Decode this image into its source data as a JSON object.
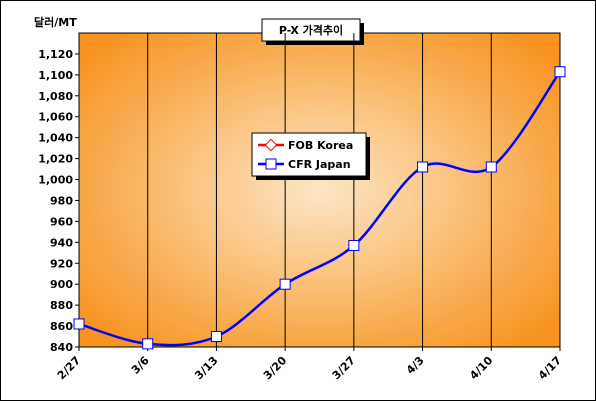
{
  "chart_data": {
    "type": "line",
    "title": "P-X 가격추이",
    "y_label": "달러/MT",
    "categories": [
      "2/27",
      "3/6",
      "3/13",
      "3/20",
      "3/27",
      "4/3",
      "4/10",
      "4/17"
    ],
    "series": [
      {
        "name": "FOB Korea",
        "color": "#ff0000",
        "values": [
          null,
          null,
          null,
          null,
          null,
          null,
          null,
          null
        ]
      },
      {
        "name": "CFR Japan",
        "color": "#0000ff",
        "values": [
          862,
          843,
          850,
          900,
          937,
          1012,
          1012,
          1103
        ]
      }
    ],
    "ylim": [
      840,
      1140
    ],
    "yticks": [
      840,
      860,
      880,
      900,
      920,
      940,
      960,
      980,
      {
        "value": 1000,
        "label": "1,000"
      },
      {
        "value": 1020,
        "label": "1,020"
      },
      {
        "value": 1040,
        "label": "1,040"
      },
      {
        "value": 1060,
        "label": "1,060"
      },
      {
        "value": 1080,
        "label": "1,080"
      },
      {
        "value": 1100,
        "label": "1,100"
      },
      {
        "value": 1120,
        "label": "1,120"
      }
    ],
    "grid": "vertical",
    "smooth": true,
    "legend": "center"
  }
}
